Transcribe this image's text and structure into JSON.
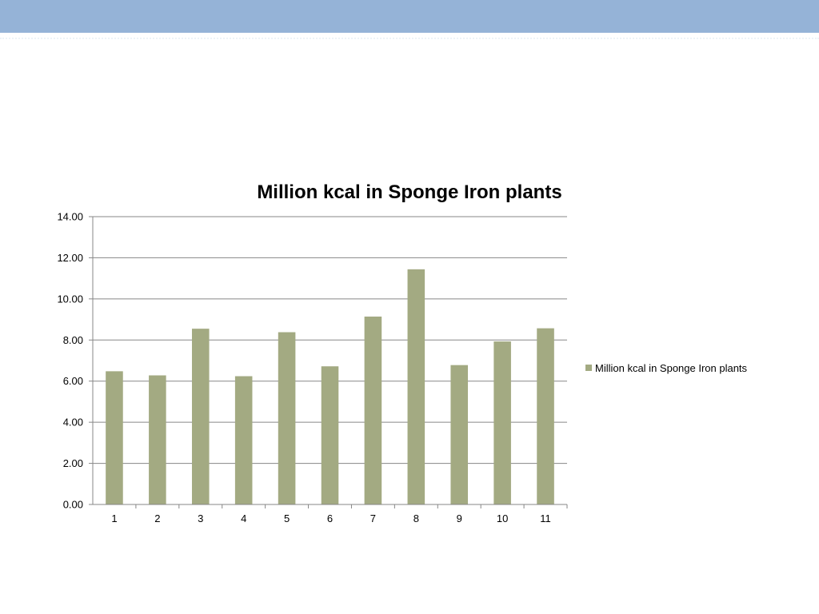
{
  "slide": {
    "header_band_color": "#95b3d7"
  },
  "chart_data": {
    "type": "bar",
    "title": "Million kcal in Sponge Iron plants",
    "categories": [
      "1",
      "2",
      "3",
      "4",
      "5",
      "6",
      "7",
      "8",
      "9",
      "10",
      "11"
    ],
    "series": [
      {
        "name": "Million kcal in Sponge Iron plants",
        "color": "#a3aa82",
        "values": [
          6.48,
          6.28,
          8.55,
          6.24,
          8.38,
          6.72,
          9.14,
          11.44,
          6.78,
          7.93,
          8.57
        ]
      }
    ],
    "yticks": [
      "0.00",
      "2.00",
      "4.00",
      "6.00",
      "8.00",
      "10.00",
      "12.00",
      "14.00"
    ],
    "ylim": [
      0,
      14
    ],
    "grid": true,
    "legend_position": "right"
  }
}
